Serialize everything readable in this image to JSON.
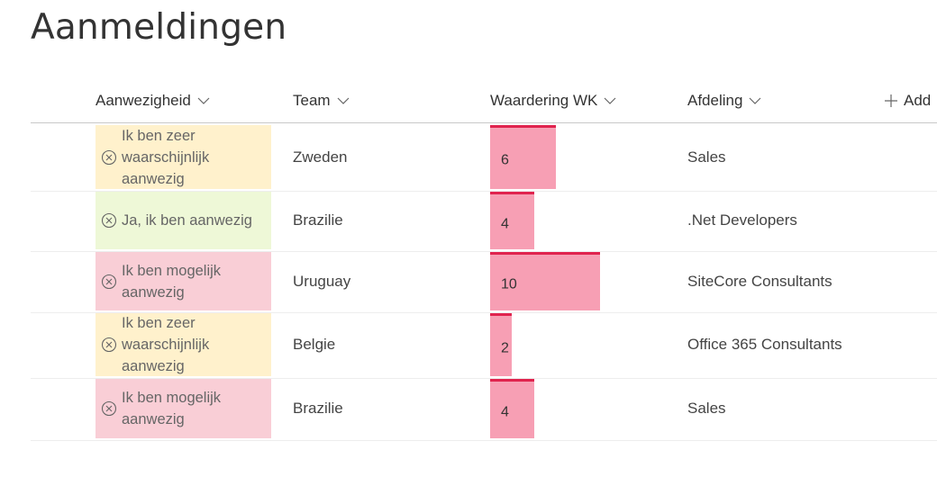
{
  "page": {
    "title": "Aanmeldingen"
  },
  "columns": {
    "presence": "Aanwezigheid",
    "team": "Team",
    "rating": "Waardering WK",
    "department": "Afdeling",
    "add": "Add"
  },
  "colors": {
    "very_likely": "#fff1cc",
    "yes": "#eef8d7",
    "maybe": "#f9ced6",
    "bar_fill": "#f79fb4",
    "bar_top": "#e0234e"
  },
  "rows": [
    {
      "presence": "Ik ben zeer waarschijnlijk aanwezig",
      "status": "very_likely",
      "team": "Zweden",
      "rating": 6,
      "rating_label": "6",
      "department": "Sales"
    },
    {
      "presence": "Ja, ik ben aanwezig",
      "status": "yes",
      "team": "Brazilie",
      "rating": 4,
      "rating_label": "4",
      "department": ".Net Developers"
    },
    {
      "presence": "Ik ben mogelijk aanwezig",
      "status": "maybe",
      "team": "Uruguay",
      "rating": 10,
      "rating_label": "10",
      "department": "SiteCore Consultants"
    },
    {
      "presence": "Ik ben zeer waarschijnlijk aanwezig",
      "status": "very_likely",
      "team": "Belgie",
      "rating": 2,
      "rating_label": "2",
      "department": "Office 365 Consultants"
    },
    {
      "presence": "Ik ben mogelijk aanwezig",
      "status": "maybe",
      "team": "Brazilie",
      "rating": 4,
      "rating_label": "4",
      "department": "Sales"
    }
  ]
}
